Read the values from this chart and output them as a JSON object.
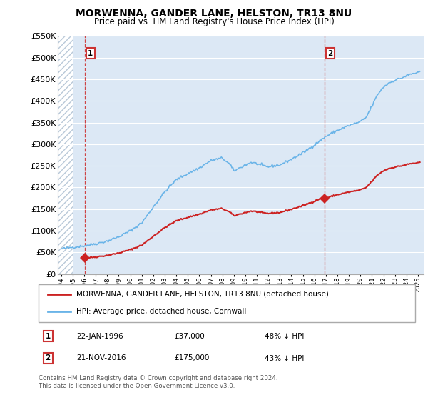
{
  "title": "MORWENNA, GANDER LANE, HELSTON, TR13 8NU",
  "subtitle": "Price paid vs. HM Land Registry's House Price Index (HPI)",
  "hpi_label": "HPI: Average price, detached house, Cornwall",
  "price_label": "MORWENNA, GANDER LANE, HELSTON, TR13 8NU (detached house)",
  "transaction1_date": "22-JAN-1996",
  "transaction1_price": 37000,
  "transaction1_pct": "48% ↓ HPI",
  "transaction2_date": "21-NOV-2016",
  "transaction2_price": 175000,
  "transaction2_pct": "43% ↓ HPI",
  "footer": "Contains HM Land Registry data © Crown copyright and database right 2024.\nThis data is licensed under the Open Government Licence v3.0.",
  "ylim": [
    0,
    550000
  ],
  "yticks": [
    0,
    50000,
    100000,
    150000,
    200000,
    250000,
    300000,
    350000,
    400000,
    450000,
    500000,
    550000
  ],
  "hpi_color": "#6ab4e8",
  "price_color": "#cc2222",
  "vline_color": "#cc3333",
  "plot_bg": "#dce8f5",
  "transaction1_x": 1996.06,
  "transaction2_x": 2016.9,
  "xlim_left": 1993.7,
  "xlim_right": 2025.5
}
